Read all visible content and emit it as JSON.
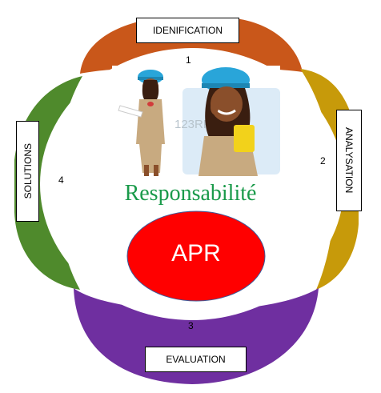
{
  "steps": {
    "identification": {
      "label": "IDENIFICATION",
      "number": "1"
    },
    "analysation": {
      "label": "ANALYSATION",
      "number": "2"
    },
    "evaluation": {
      "label": "EVALUATION",
      "number": "3"
    },
    "solutions": {
      "label": "SOLUTIONS",
      "number": "4"
    }
  },
  "center": {
    "title": "Responsabilité",
    "core_label": "APR"
  },
  "colors": {
    "identification": "#c9571a",
    "analysation": "#c79a0a",
    "evaluation": "#6f2fa0",
    "solutions": "#4f8a2c",
    "core": "#ff0000",
    "title": "#1a9a4a"
  },
  "illustration": {
    "description_icon": "two-engineer-women-illustration",
    "watermark_text": "123RF"
  }
}
